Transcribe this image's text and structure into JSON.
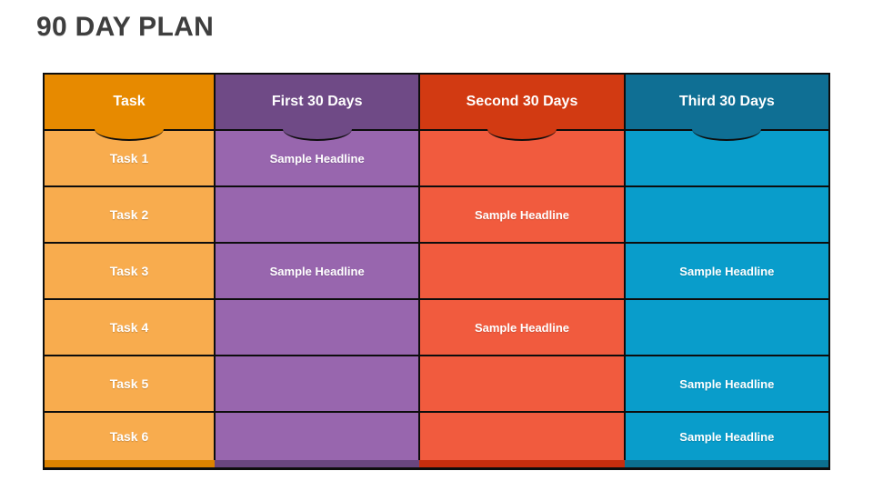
{
  "title": "90 DAY PLAN",
  "table": {
    "columns": [
      {
        "label": "Task"
      },
      {
        "label": "First 30 Days"
      },
      {
        "label": "Second 30 Days"
      },
      {
        "label": "Third 30 Days"
      }
    ],
    "rows": [
      {
        "task": "Task 1",
        "cells": [
          "Sample Headline",
          "",
          ""
        ]
      },
      {
        "task": "Task 2",
        "cells": [
          "",
          "Sample Headline",
          ""
        ]
      },
      {
        "task": "Task 3",
        "cells": [
          "Sample Headline",
          "",
          "Sample Headline"
        ]
      },
      {
        "task": "Task 4",
        "cells": [
          "",
          "Sample Headline",
          ""
        ]
      },
      {
        "task": "Task 5",
        "cells": [
          "",
          "",
          "Sample Headline"
        ]
      },
      {
        "task": "Task 6",
        "cells": [
          "",
          "",
          "Sample Headline"
        ]
      }
    ]
  },
  "colors": {
    "title_text": "#3E3E3E",
    "border": "#0D0D0D",
    "cell_text": "#FFFFFF",
    "columns": [
      {
        "header": "#E78A00",
        "row": "#F8AC4E",
        "strip": "#DD8300"
      },
      {
        "header": "#6F4A86",
        "row": "#9866AE",
        "strip": "#6A467F"
      },
      {
        "header": "#D23A12",
        "row": "#F15B3E",
        "strip": "#C72E0E"
      },
      {
        "header": "#0F6F94",
        "row": "#099DCB",
        "strip": "#0C6F8F"
      }
    ]
  }
}
